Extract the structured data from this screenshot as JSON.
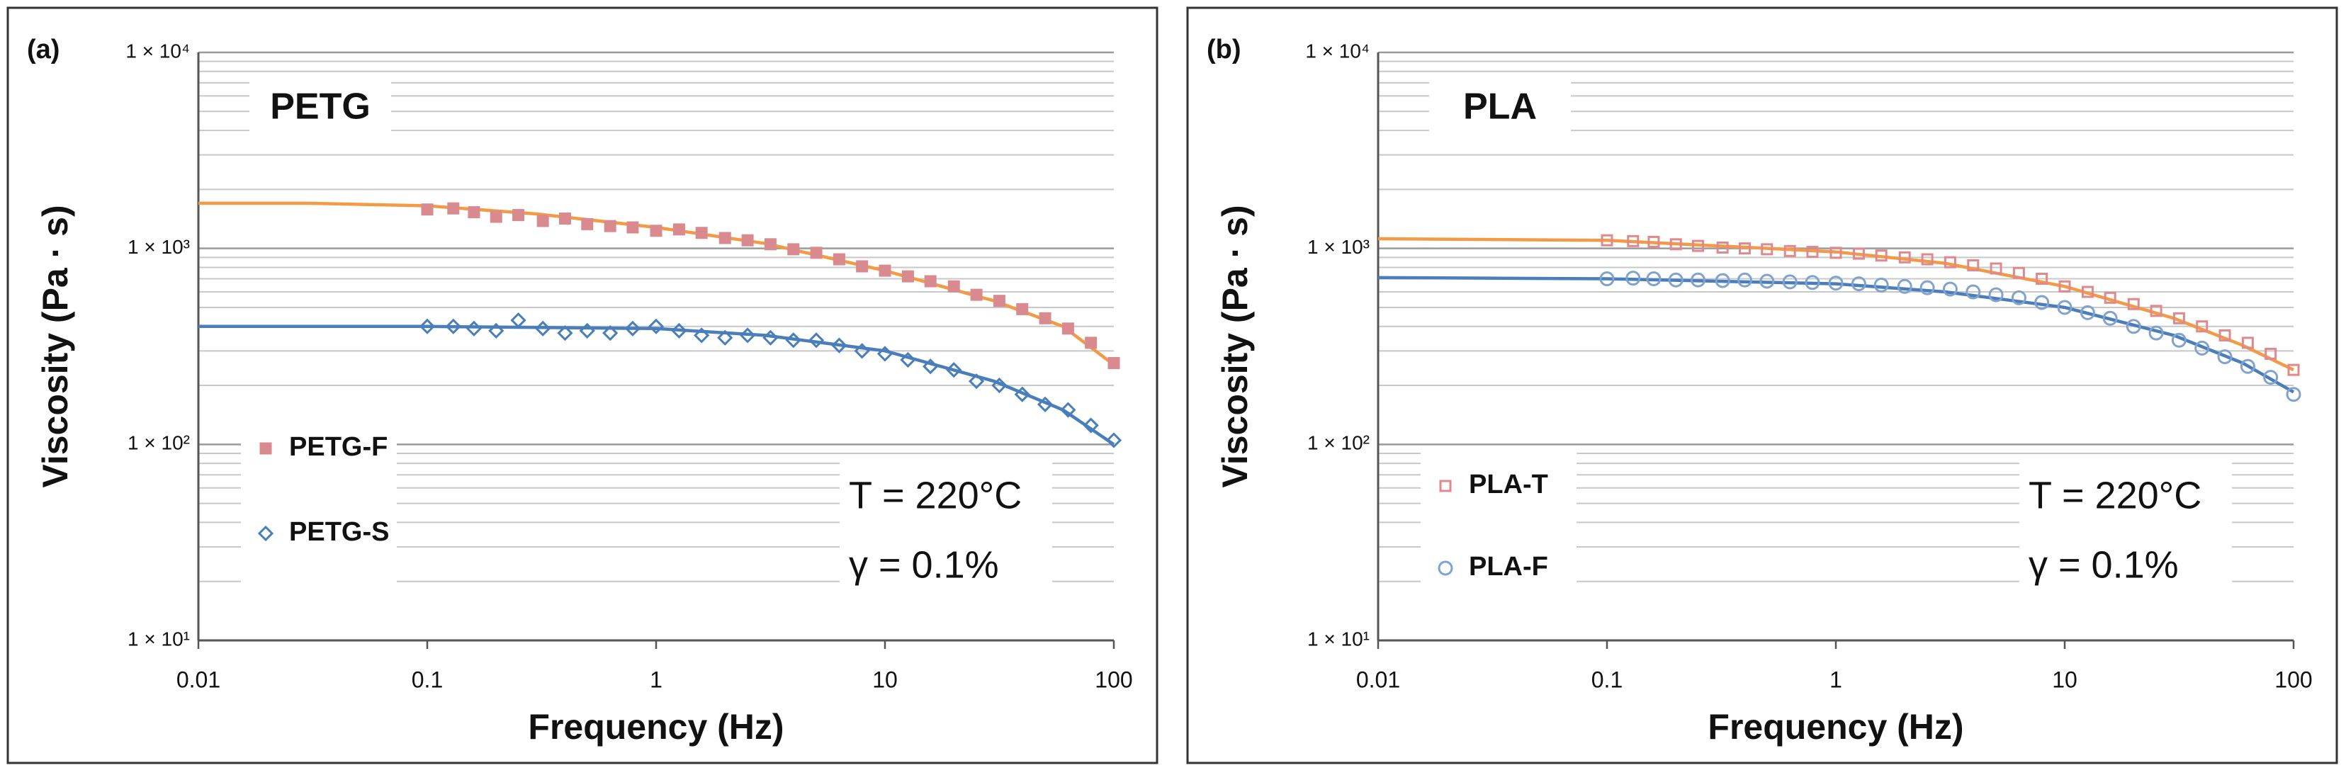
{
  "chart_data": [
    {
      "type": "scatter",
      "panel_label": "(a)",
      "title": "PETG",
      "x_label": "Frequency (Hz)",
      "y_label": "Viscosity (Pa · s)",
      "annotations": [
        "T = 220°C",
        "γ = 0.1%"
      ],
      "log_x": true,
      "log_y": true,
      "grid": true,
      "minor_grid": true,
      "legend": "middle left",
      "xlim": [
        0.01,
        100
      ],
      "xticks": [
        0.01,
        0.1,
        1,
        10,
        100
      ],
      "ylim": [
        10,
        10000
      ],
      "yticks": [
        {
          "value": 10,
          "label": "1 × 10¹"
        },
        {
          "value": 100,
          "label": "1 × 10²"
        },
        {
          "value": 1000,
          "label": "1 × 10³"
        },
        {
          "value": 10000,
          "label": "1 × 10⁴"
        }
      ],
      "series": [
        {
          "name": "PETG-F",
          "type": "scatter",
          "marker": "square",
          "filled": true,
          "color": "#d98a8f",
          "x": [
            0.1,
            0.13,
            0.16,
            0.2,
            0.25,
            0.32,
            0.4,
            0.5,
            0.63,
            0.79,
            1,
            1.26,
            1.58,
            2,
            2.51,
            3.16,
            3.98,
            5.01,
            6.31,
            7.94,
            10,
            12.6,
            15.8,
            20,
            25.1,
            31.6,
            39.8,
            50.1,
            63.1,
            79.4,
            100
          ],
          "values": [
            1580,
            1600,
            1530,
            1450,
            1480,
            1380,
            1420,
            1330,
            1300,
            1280,
            1230,
            1250,
            1200,
            1130,
            1100,
            1050,
            990,
            950,
            880,
            810,
            770,
            720,
            680,
            640,
            580,
            540,
            490,
            440,
            390,
            330,
            260
          ]
        },
        {
          "name": "PETG-S",
          "type": "scatter",
          "marker": "diamond",
          "filled": false,
          "color": "#4a7ebb",
          "x": [
            0.1,
            0.13,
            0.16,
            0.2,
            0.25,
            0.32,
            0.4,
            0.5,
            0.63,
            0.79,
            1,
            1.26,
            1.58,
            2,
            2.51,
            3.16,
            3.98,
            5.01,
            6.31,
            7.94,
            10,
            12.6,
            15.8,
            20,
            25.1,
            31.6,
            39.8,
            50.1,
            63.1,
            79.4,
            100
          ],
          "values": [
            400,
            400,
            390,
            380,
            430,
            390,
            370,
            380,
            370,
            390,
            400,
            380,
            360,
            350,
            360,
            350,
            340,
            340,
            320,
            300,
            290,
            270,
            250,
            240,
            210,
            200,
            180,
            160,
            150,
            125,
            105
          ]
        },
        {
          "type": "line",
          "color": "#f39a47",
          "x": [
            0.01,
            0.03,
            0.1,
            0.3,
            1,
            3,
            10,
            30,
            60,
            100
          ],
          "values": [
            1700,
            1700,
            1650,
            1500,
            1280,
            1060,
            770,
            540,
            400,
            255
          ]
        },
        {
          "type": "line",
          "color": "#4a7ebb",
          "x": [
            0.01,
            0.1,
            1,
            3,
            10,
            30,
            60,
            100
          ],
          "values": [
            400,
            400,
            390,
            360,
            300,
            210,
            150,
            100
          ]
        }
      ]
    },
    {
      "type": "scatter",
      "panel_label": "(b)",
      "title": "PLA",
      "x_label": "Frequency (Hz)",
      "y_label": "Viscosity (Pa · s)",
      "annotations": [
        "T = 220°C",
        "γ = 0.1%"
      ],
      "log_x": true,
      "log_y": true,
      "grid": true,
      "minor_grid": true,
      "legend": "lower left",
      "xlim": [
        0.01,
        100
      ],
      "xticks": [
        0.01,
        0.1,
        1,
        10,
        100
      ],
      "ylim": [
        10,
        10000
      ],
      "yticks": [
        {
          "value": 10,
          "label": "1 × 10¹"
        },
        {
          "value": 100,
          "label": "1 × 10²"
        },
        {
          "value": 1000,
          "label": "1 × 10³"
        },
        {
          "value": 10000,
          "label": "1 × 10⁴"
        }
      ],
      "series": [
        {
          "name": "PLA-T",
          "type": "scatter",
          "marker": "square",
          "filled": false,
          "color": "#e0898c",
          "x": [
            0.1,
            0.13,
            0.16,
            0.2,
            0.25,
            0.32,
            0.4,
            0.5,
            0.63,
            0.79,
            1,
            1.26,
            1.58,
            2,
            2.51,
            3.16,
            3.98,
            5.01,
            6.31,
            7.94,
            10,
            12.6,
            15.8,
            20,
            25.1,
            31.6,
            39.8,
            50.1,
            63.1,
            79.4,
            100
          ],
          "values": [
            1100,
            1090,
            1080,
            1050,
            1030,
            1010,
            1000,
            990,
            970,
            960,
            950,
            940,
            920,
            900,
            880,
            850,
            820,
            790,
            750,
            700,
            640,
            600,
            560,
            520,
            480,
            440,
            400,
            360,
            330,
            290,
            240
          ]
        },
        {
          "name": "PLA-F",
          "type": "scatter",
          "marker": "circle",
          "filled": false,
          "color": "#7fa2cf",
          "x": [
            0.1,
            0.13,
            0.16,
            0.2,
            0.25,
            0.32,
            0.4,
            0.5,
            0.63,
            0.79,
            1,
            1.26,
            1.58,
            2,
            2.51,
            3.16,
            3.98,
            5.01,
            6.31,
            7.94,
            10,
            12.6,
            15.8,
            20,
            25.1,
            31.6,
            39.8,
            50.1,
            63.1,
            79.4,
            100
          ],
          "values": [
            700,
            705,
            700,
            690,
            690,
            685,
            690,
            680,
            675,
            670,
            665,
            660,
            650,
            640,
            630,
            620,
            600,
            580,
            560,
            530,
            500,
            470,
            440,
            400,
            370,
            340,
            310,
            280,
            250,
            220,
            180
          ]
        },
        {
          "type": "line",
          "color": "#f39a47",
          "x": [
            0.01,
            0.1,
            1,
            3,
            10,
            30,
            60,
            100
          ],
          "values": [
            1120,
            1100,
            960,
            840,
            640,
            440,
            320,
            240
          ]
        },
        {
          "type": "line",
          "color": "#4a7ebb",
          "x": [
            0.01,
            0.1,
            1,
            3,
            10,
            30,
            60,
            100
          ],
          "values": [
            710,
            700,
            660,
            600,
            500,
            360,
            260,
            185
          ]
        }
      ]
    }
  ]
}
